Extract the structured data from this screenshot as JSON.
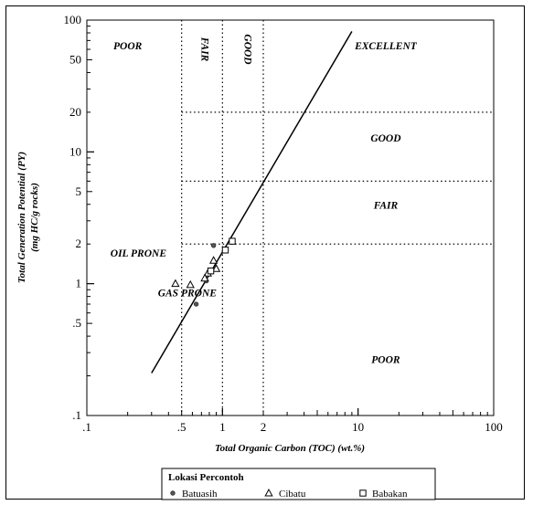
{
  "chart_data": {
    "type": "scatter",
    "xlabel": "Total Organic Carbon (TOC) (wt.%)",
    "ylabel": "Total Generation Potential (PY)",
    "ylabel_units": "(mg HC/g rocks)",
    "xscale": "log",
    "yscale": "log",
    "xlim": [
      0.1,
      100
    ],
    "ylim": [
      0.1,
      100
    ],
    "x_ticks": [
      {
        "v": 0.1,
        "label": ".1"
      },
      {
        "v": 0.5,
        "label": ".5"
      },
      {
        "v": 1,
        "label": "1"
      },
      {
        "v": 2,
        "label": "2"
      },
      {
        "v": 10,
        "label": "10"
      },
      {
        "v": 100,
        "label": "100"
      }
    ],
    "y_ticks": [
      {
        "v": 100,
        "label": "100"
      },
      {
        "v": 50,
        "label": "50"
      },
      {
        "v": 20,
        "label": "20"
      },
      {
        "v": 10,
        "label": "10"
      },
      {
        "v": 5,
        "label": "5"
      },
      {
        "v": 2,
        "label": "2"
      },
      {
        "v": 1,
        "label": "1"
      },
      {
        "v": 0.5,
        "label": ".5"
      },
      {
        "v": 0.1,
        "label": ".1"
      }
    ],
    "x_thresholds": [
      0.5,
      1,
      2
    ],
    "y_thresholds": [
      2,
      6,
      20
    ],
    "zones_x": [
      {
        "label": "POOR",
        "x": 0.2,
        "y": 60,
        "rotate": false
      },
      {
        "label": "FAIR",
        "x": 0.7,
        "y": 60,
        "rotate": true
      },
      {
        "label": "GOOD",
        "x": 1.45,
        "y": 60,
        "rotate": true
      },
      {
        "label": "EXCELLENT",
        "x": 16,
        "y": 60,
        "rotate": false
      }
    ],
    "zones_y": [
      {
        "label": "GOOD",
        "x": 16,
        "y": 12
      },
      {
        "label": "FAIR",
        "x": 16,
        "y": 3.7
      },
      {
        "label": "POOR",
        "x": 16,
        "y": 0.25
      }
    ],
    "annotations": [
      {
        "label": "OIL PRONE",
        "x": 0.24,
        "y": 1.6
      },
      {
        "label": "GAS PRONE",
        "x": 0.55,
        "y": 0.8
      }
    ],
    "trend_line": {
      "x": [
        0.3,
        9
      ],
      "y": [
        0.21,
        82
      ]
    },
    "series": [
      {
        "name": "Batuasih",
        "marker": "circle",
        "points": [
          [
            0.86,
            1.95
          ],
          [
            0.76,
            1.05
          ],
          [
            0.64,
            0.7
          ]
        ]
      },
      {
        "name": "Cibatu",
        "marker": "triangle",
        "points": [
          [
            0.45,
            1.0
          ],
          [
            0.58,
            0.98
          ],
          [
            0.78,
            1.2
          ],
          [
            0.86,
            1.5
          ],
          [
            0.9,
            1.3
          ],
          [
            0.74,
            1.1
          ]
        ]
      },
      {
        "name": "Babakan",
        "marker": "square",
        "points": [
          [
            1.05,
            1.8
          ],
          [
            1.18,
            2.1
          ],
          [
            0.82,
            1.25
          ]
        ]
      }
    ],
    "legend": {
      "title": "Lokasi Percontoh",
      "position": "bottom"
    },
    "grid": false
  }
}
